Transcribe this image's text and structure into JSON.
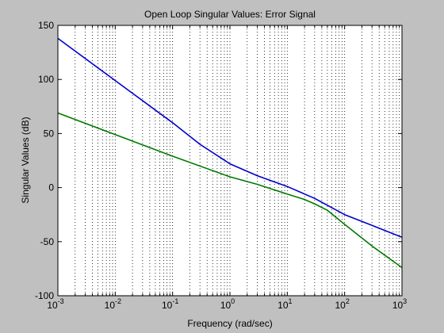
{
  "colors": {
    "figure_background": "#c0c0c0",
    "axes_background": "#ffffff",
    "series_1": "#0000cc",
    "series_2": "#007a00"
  },
  "chart_data": {
    "type": "line",
    "title": "Open Loop Singular Values: Error Signal",
    "xlabel": "Frequency (rad/sec)",
    "ylabel": "Singular Values (dB)",
    "x_scale": "log",
    "xlim": [
      0.001,
      1000
    ],
    "ylim": [
      -100,
      150
    ],
    "grid": "vertical dotted at every log decade subdivision",
    "legend": "none",
    "x_ticks": [
      {
        "value": 0.001,
        "base": "10",
        "exp": "-3"
      },
      {
        "value": 0.01,
        "base": "10",
        "exp": "-2"
      },
      {
        "value": 0.1,
        "base": "10",
        "exp": "-1"
      },
      {
        "value": 1,
        "base": "10",
        "exp": "0"
      },
      {
        "value": 10,
        "base": "10",
        "exp": "1"
      },
      {
        "value": 100,
        "base": "10",
        "exp": "2"
      },
      {
        "value": 1000,
        "base": "10",
        "exp": "3"
      }
    ],
    "y_ticks": [
      150,
      100,
      50,
      0,
      -50,
      -100
    ],
    "series": [
      {
        "color": "#0000cc",
        "x": [
          0.001,
          0.01,
          0.1,
          0.3,
          1,
          3,
          10,
          30,
          100,
          300,
          1000
        ],
        "y": [
          138,
          99,
          60,
          40,
          22,
          11,
          1,
          -10,
          -25,
          -35,
          -46
        ]
      },
      {
        "color": "#007a00",
        "x": [
          0.001,
          0.01,
          0.1,
          1,
          3,
          10,
          20,
          30,
          50,
          100,
          300,
          1000
        ],
        "y": [
          69,
          49,
          29,
          10,
          3,
          -6,
          -11,
          -15,
          -21,
          -34,
          -54,
          -74
        ]
      }
    ]
  }
}
